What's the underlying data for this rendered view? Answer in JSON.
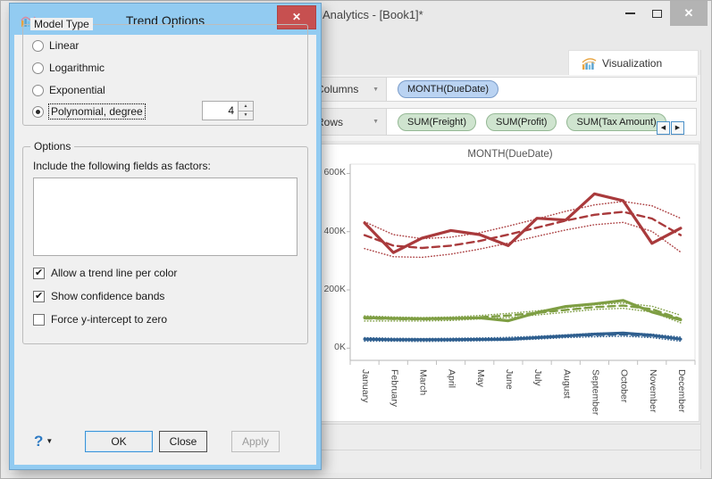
{
  "window": {
    "title": "Analytics - [Book1]*",
    "tab": "Visualization",
    "shelves": {
      "columns_label": "Columns",
      "rows_label": "Rows",
      "columns_pills": [
        "MONTH(DueDate)"
      ],
      "rows_pills": [
        "SUM(Freight)",
        "SUM(Profit)",
        "SUM(Tax Amount)"
      ]
    }
  },
  "dialog": {
    "title": "Trend Options",
    "model_type": {
      "legend": "Model Type",
      "options": [
        {
          "label": "Linear",
          "selected": false
        },
        {
          "label": "Logarithmic",
          "selected": false
        },
        {
          "label": "Exponential",
          "selected": false
        },
        {
          "label": "Polynomial, degree",
          "selected": true
        }
      ],
      "degree_value": "4"
    },
    "options_group": {
      "legend": "Options",
      "factors_label": "Include the following fields as factors:",
      "factors_list": [],
      "checkboxes": [
        {
          "label": "Allow a trend line per color",
          "checked": true
        },
        {
          "label": "Show confidence bands",
          "checked": true
        },
        {
          "label": "Force y-intercept to zero",
          "checked": false
        }
      ]
    },
    "help_label": "?",
    "buttons": {
      "ok": "OK",
      "close": "Close",
      "apply": "Apply"
    }
  },
  "icons": {
    "close_glyph": "✕",
    "caret_down": "▼",
    "spinner_up": "▲",
    "spinner_down": "▼",
    "check": "✔",
    "scroll_left": "◀",
    "scroll_right": "▶"
  },
  "colors": {
    "dialog_chrome": "#92cbf1",
    "dialog_close_button": "#c75050",
    "series_red": "#a93a3c",
    "series_green": "#7e9e43",
    "series_blue": "#2f5f8f",
    "pill_blue": "#bad3f2",
    "pill_green": "#cfe4cf"
  },
  "chart_data": {
    "type": "line",
    "title": "MONTH(DueDate)",
    "x": [
      "January",
      "February",
      "March",
      "April",
      "May",
      "June",
      "July",
      "August",
      "September",
      "October",
      "November",
      "December"
    ],
    "ylabel": "",
    "ylim": [
      -42,
      632
    ],
    "yticks": [
      {
        "v": 600,
        "label": "600K"
      },
      {
        "v": 400,
        "label": "400K"
      },
      {
        "v": 200,
        "label": "200K"
      },
      {
        "v": 0,
        "label": "0K"
      }
    ],
    "grid": false,
    "legend": "none",
    "note_units": "values in thousands (K)",
    "series": [
      {
        "name": "red",
        "color": "#a93a3c",
        "values": [
          430,
          328,
          378,
          404,
          390,
          352,
          446,
          440,
          530,
          506,
          360,
          412
        ],
        "trend": [
          388,
          352,
          344,
          352,
          368,
          390,
          414,
          438,
          458,
          468,
          445,
          388
        ],
        "band": [
          46,
          38,
          32,
          29,
          28,
          29,
          30,
          32,
          34,
          36,
          44,
          58
        ]
      },
      {
        "name": "green",
        "color": "#7e9e43",
        "values": [
          105,
          102,
          101,
          102,
          104,
          94,
          122,
          143,
          152,
          164,
          124,
          97
        ],
        "trend": [
          102,
          100,
          99,
          101,
          106,
          112,
          121,
          131,
          141,
          146,
          134,
          100
        ],
        "band": [
          9,
          7,
          6,
          6,
          6,
          7,
          7,
          8,
          8,
          9,
          10,
          13
        ]
      },
      {
        "name": "blue",
        "color": "#2f5f8f",
        "values": [
          31,
          29,
          29,
          29,
          30,
          30,
          36,
          42,
          48,
          52,
          44,
          31
        ],
        "trend": [
          30,
          29,
          28,
          29,
          30,
          32,
          36,
          41,
          45,
          47,
          42,
          31
        ],
        "band": [
          6,
          5,
          5,
          5,
          5,
          5,
          5,
          5,
          6,
          6,
          6,
          7
        ]
      }
    ]
  }
}
